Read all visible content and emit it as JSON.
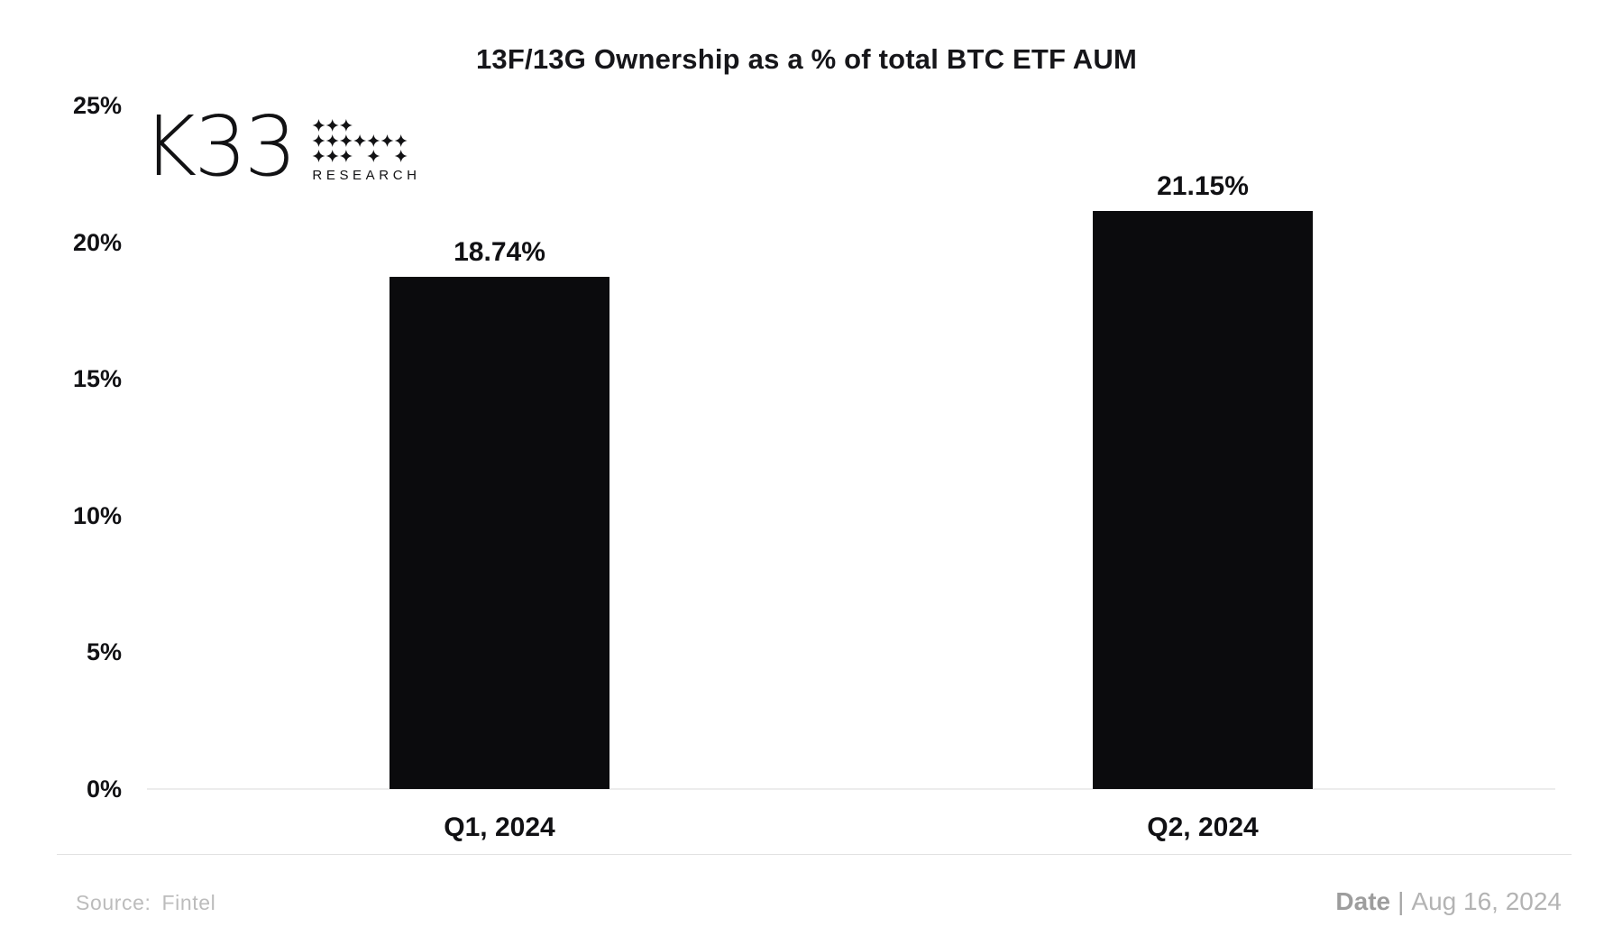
{
  "title": "13F/13G Ownership as a % of total BTC ETF AUM",
  "logo": {
    "brand": "K33",
    "sub": "RESEARCH"
  },
  "chart_data": {
    "type": "bar",
    "title": "13F/13G Ownership as a % of total BTC ETF AUM",
    "categories": [
      "Q1, 2024",
      "Q2, 2024"
    ],
    "values": [
      18.74,
      21.15
    ],
    "value_labels": [
      "18.74%",
      "21.15%"
    ],
    "xlabel": "",
    "ylabel": "",
    "ylim": [
      0,
      25
    ],
    "ytick_values": [
      25,
      20,
      15,
      10,
      5,
      0
    ],
    "yticks": [
      "25%",
      "20%",
      "15%",
      "10%",
      "5%",
      "0%"
    ],
    "grid": false,
    "legend": "none",
    "bar_color": "#0b0b0d",
    "background_color": "#ffffff"
  },
  "footer": {
    "source_label": "Source:",
    "source_value": "Fintel",
    "date_label": "Date",
    "date_separator": "|",
    "date_value": "Aug 16, 2024"
  },
  "colors": {
    "bar": "#0b0b0d",
    "text": "#111114",
    "axis_line": "#ececec",
    "divider": "#e1e1e1",
    "footer_text": "#b3b3b3"
  }
}
